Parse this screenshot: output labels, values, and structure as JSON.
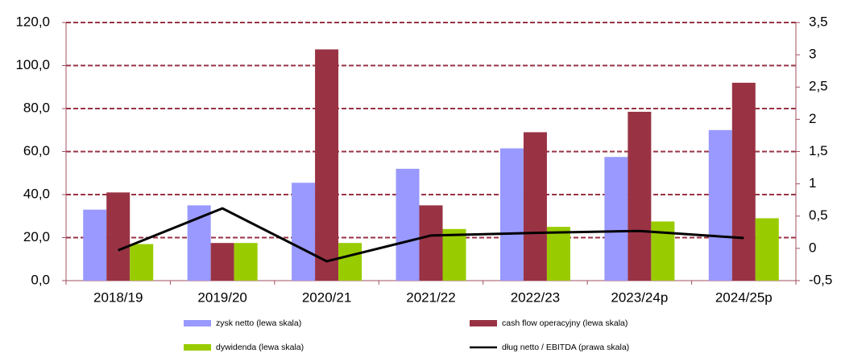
{
  "chart_data": {
    "type": "bar",
    "categories": [
      "2018/19",
      "2019/20",
      "2020/21",
      "2021/22",
      "2022/23",
      "2023/24p",
      "2024/25p"
    ],
    "series": [
      {
        "name": "zysk netto (lewa skala)",
        "color": "#9999ff",
        "values": [
          33,
          35,
          45.5,
          52,
          61.5,
          57.5,
          70
        ]
      },
      {
        "name": "cash flow operacyjny (lewa skala)",
        "color": "#993344",
        "values": [
          41,
          17.5,
          107.5,
          35,
          69,
          78.5,
          92
        ]
      },
      {
        "name": "dywidenda (lewa skala)",
        "color": "#99cc00",
        "values": [
          17,
          17.5,
          17.5,
          24,
          25,
          27.5,
          29
        ]
      },
      {
        "name": "dług netto / EBITDA (prawa skala)",
        "color": "#000000",
        "type": "line",
        "axis": "y2",
        "values": [
          -0.03,
          0.62,
          -0.2,
          0.2,
          0.24,
          0.27,
          0.16
        ]
      }
    ],
    "ylim": [
      0,
      120
    ],
    "yticks": [
      {
        "value": 0,
        "label": "0,0"
      },
      {
        "value": 20,
        "label": "20,0"
      },
      {
        "value": 40,
        "label": "40,0"
      },
      {
        "value": 60,
        "label": "60,0"
      },
      {
        "value": 80,
        "label": "80,0"
      },
      {
        "value": 100,
        "label": "100,0"
      },
      {
        "value": 120,
        "label": "120,0"
      }
    ],
    "y2lim": [
      -0.5,
      3.5
    ],
    "y2ticks": [
      {
        "value": -0.5,
        "label": "-0,5"
      },
      0,
      {
        "value": 0.5,
        "label": "0,5"
      },
      1,
      {
        "value": 1.5,
        "label": "1,5"
      },
      2,
      {
        "value": 2.5,
        "label": "2,5"
      },
      3,
      {
        "value": 3.5,
        "label": "3,5"
      }
    ],
    "grid": true,
    "grid_color": "#993344",
    "axis_color": "#a05060",
    "legend": "bottom"
  }
}
